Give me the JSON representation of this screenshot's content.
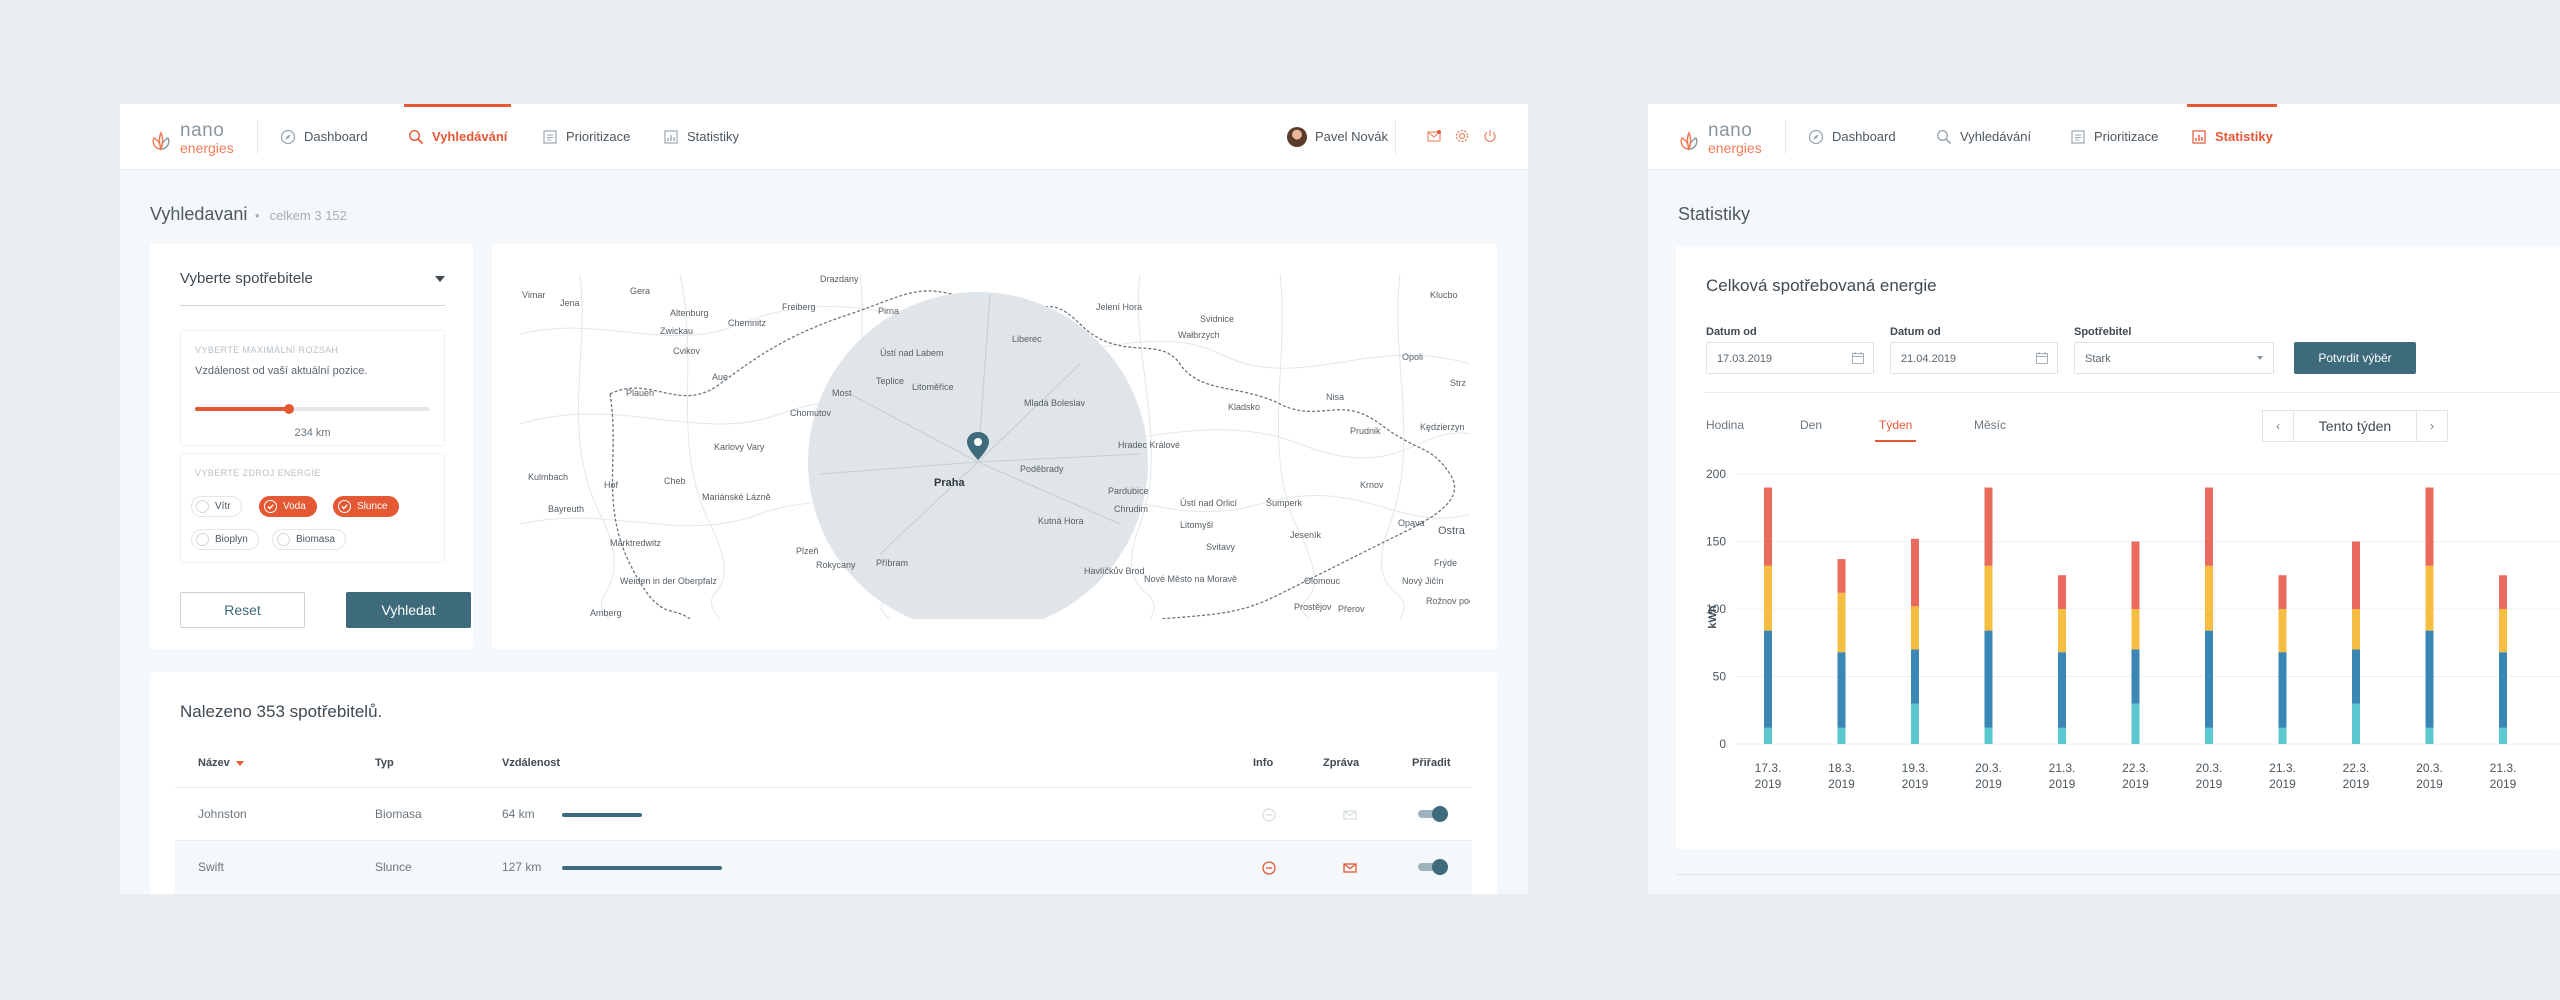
{
  "brand": {
    "word1": "nano",
    "word2": "energies",
    "colors": {
      "accent": "#e45834",
      "primary": "#3e6b7c"
    }
  },
  "search_window": {
    "nav": [
      {
        "label": "Dashboard",
        "icon": "compass-icon"
      },
      {
        "label": "Vyhledávání",
        "icon": "search-icon"
      },
      {
        "label": "Prioritizace",
        "icon": "list-icon"
      },
      {
        "label": "Statistiky",
        "icon": "chart-icon"
      }
    ],
    "active_nav": "Vyhledávání",
    "user": {
      "name": "Pavel Novák"
    },
    "top_icons": [
      "mail-icon",
      "gear-icon",
      "power-icon"
    ],
    "page_title": "Vyhledavani",
    "page_subtitle": "celkem 3 152",
    "filter": {
      "select_label": "Vyberte spotřebitele",
      "distance_caption": "VYBERTE MAXIMÁLNÍ ROZSAH",
      "distance_desc": "Vzdálenost od vaší aktuální pozice.",
      "distance_value": "234 km",
      "distance_fraction": 0.4,
      "sources_caption": "VYBERTE ZDROJ ENERGIE",
      "sources": [
        {
          "label": "Vítr",
          "selected": false
        },
        {
          "label": "Voda",
          "selected": true
        },
        {
          "label": "Slunce",
          "selected": true
        },
        {
          "label": "Bioplyn",
          "selected": false
        },
        {
          "label": "Biomasa",
          "selected": false
        }
      ],
      "reset_label": "Reset",
      "search_label": "Vyhledat"
    },
    "map": {
      "cities": [
        "Drazdany",
        "Vimar",
        "Jena",
        "Gera",
        "Altenburg",
        "Freiberg",
        "Pirna",
        "Chemnitz",
        "Ústí nad Labem",
        "Liberec",
        "Jelení Hora",
        "Svidnice",
        "Wałbrzych",
        "Klucbo",
        "Zwickau",
        "Plauen",
        "Cvikov",
        "Aue",
        "Teplice",
        "Litoměřice",
        "Mladá Boleslav",
        "Most",
        "Chomutov",
        "Opoli",
        "Strz",
        "Kladsko",
        "Nisa",
        "Hradec Králové",
        "Prudnik",
        "Kędzierzyn",
        "Karlovy Vary",
        "Kulmbach",
        "Hof",
        "Cheb",
        "Praha",
        "Poděbrady",
        "Pardubice",
        "Chrudim",
        "Ústí nad Orlicí",
        "Šumperk",
        "Krnov",
        "Opava",
        "Ostra",
        "Bayreuth",
        "Mariánské Lázně",
        "Kutná Hora",
        "Litomyšl",
        "Svitavy",
        "Plzeň",
        "Příbram",
        "Rokycany",
        "Havlíčkův Brod",
        "Nové Město na Moravě",
        "Olomouc",
        "Nový Jičín",
        "Frýde",
        "Weiden in der Oberpfalz",
        "Marktredwitz",
        "Amberg",
        "Jeseník",
        "Prostějov",
        "Přerov",
        "Rožnov pod Radhoštěm"
      ],
      "pin_icon": "location-pin-icon"
    },
    "results": {
      "title": "Nalezeno 353 spotřebitelů.",
      "columns": {
        "name": "Název",
        "type": "Typ",
        "distance": "Vzdálenost",
        "info": "Info",
        "message": "Zpráva",
        "assign": "Přiřadit"
      },
      "rows": [
        {
          "name": "Johnston",
          "type": "Biomasa",
          "distance": "64 km",
          "distance_fraction": 0.5,
          "assigned": true,
          "active": false
        },
        {
          "name": "Swift",
          "type": "Slunce",
          "distance": "127 km",
          "distance_fraction": 1.0,
          "assigned": true,
          "active": true
        }
      ]
    }
  },
  "stats_window": {
    "nav": [
      {
        "label": "Dashboard",
        "icon": "compass-icon"
      },
      {
        "label": "Vyhledávání",
        "icon": "search-icon"
      },
      {
        "label": "Prioritizace",
        "icon": "list-icon"
      },
      {
        "label": "Statistiky",
        "icon": "chart-icon"
      }
    ],
    "active_nav": "Statistiky",
    "page_title": "Statistiky",
    "card_title": "Celková spotřebovaná energie",
    "form": {
      "date_from_label": "Datum od",
      "date_from_value": "17.03.2019",
      "date_to_label": "Datum od",
      "date_to_value": "21.04.2019",
      "consumer_label": "Spotřebitel",
      "consumer_value": "Stark",
      "confirm_label": "Potvrdit výběr"
    },
    "period_tabs": [
      "Hodina",
      "Den",
      "Týden",
      "Měsíc"
    ],
    "active_tab": "Týden",
    "week_label": "Tento týden",
    "prev_icon": "chevron-left-icon",
    "next_icon": "chevron-right-icon"
  },
  "chart_data": {
    "type": "bar",
    "stacked": true,
    "ylabel": "kWh",
    "ylim": [
      0,
      200
    ],
    "yticks": [
      0,
      50,
      100,
      150,
      200
    ],
    "grid": true,
    "categories": [
      [
        "17.3.",
        "2019"
      ],
      [
        "18.3.",
        "2019"
      ],
      [
        "19.3.",
        "2019"
      ],
      [
        "20.3.",
        "2019"
      ],
      [
        "21.3.",
        "2019"
      ],
      [
        "22.3.",
        "2019"
      ],
      [
        "20.3.",
        "2019"
      ],
      [
        "21.3.",
        "2019"
      ],
      [
        "22.3.",
        "2019"
      ],
      [
        "20.3.",
        "2019"
      ],
      [
        "21.3.",
        "2019"
      ]
    ],
    "series": [
      {
        "color": "#5bc7cf",
        "values": [
          12,
          12,
          30,
          12,
          12,
          30,
          12,
          12,
          30,
          12,
          12
        ]
      },
      {
        "color": "#3a86b5",
        "values": [
          72,
          56,
          40,
          72,
          56,
          40,
          72,
          56,
          40,
          72,
          56
        ]
      },
      {
        "color": "#f5be42",
        "values": [
          48,
          44,
          32,
          48,
          32,
          30,
          48,
          32,
          30,
          48,
          32
        ]
      },
      {
        "color": "#ea6b5d",
        "values": [
          58,
          25,
          50,
          58,
          25,
          50,
          58,
          25,
          50,
          58,
          25
        ]
      }
    ]
  }
}
